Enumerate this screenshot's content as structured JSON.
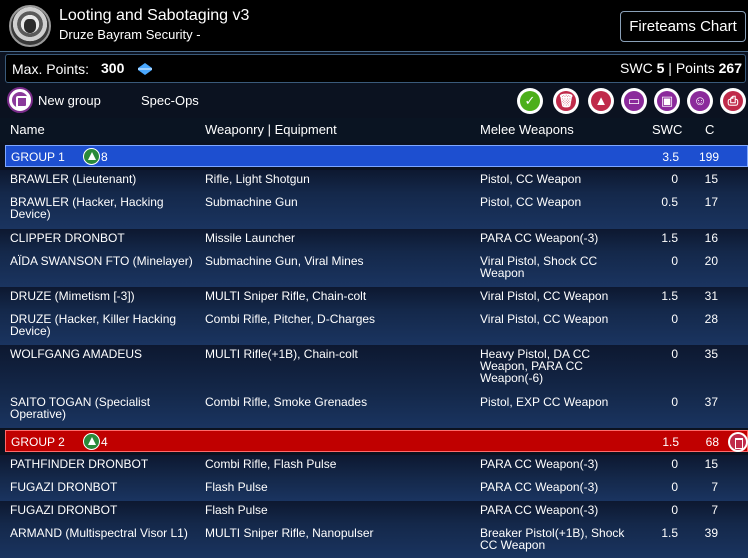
{
  "header": {
    "title": "Looting and Sabotaging v3",
    "subtitle": "Druze Bayram Security -",
    "fireteams_label": "Fireteams Chart"
  },
  "points_bar": {
    "max_points_label": "Max. Points:",
    "max_points_value": "300",
    "swc_label": "SWC",
    "swc_value": "5",
    "separator": "|",
    "points_label": "Points",
    "points_value": "267"
  },
  "toolbar": {
    "new_group_label": "New group",
    "spec_ops_label": "Spec-Ops",
    "buttons": [
      {
        "icon": "check-icon",
        "glyph": "✓",
        "color": "#4caf1a"
      },
      {
        "icon": "trash-icon",
        "glyph": "🗑",
        "color": "#c02a4a"
      },
      {
        "icon": "triangle-icon",
        "glyph": "▲",
        "color": "#c02a4a"
      },
      {
        "icon": "chat-icon",
        "glyph": "▭",
        "color": "#8b2a9b"
      },
      {
        "icon": "save-icon",
        "glyph": "▣",
        "color": "#8b2a9b"
      },
      {
        "icon": "smiley-icon",
        "glyph": "☺",
        "color": "#8b2a9b"
      },
      {
        "icon": "print-icon",
        "glyph": "⎙",
        "color": "#c02a4a"
      }
    ]
  },
  "columns": {
    "name": "Name",
    "weaponry": "Weaponry | Equipment",
    "melee": "Melee Weapons",
    "swc": "SWC",
    "cost": "C"
  },
  "groups": [
    {
      "label": "GROUP 1",
      "count": "8",
      "swc": "3.5",
      "cost": "199",
      "color": "#1d4fd0",
      "rows": [
        {
          "name": "BRAWLER (Lieutenant)",
          "weapons": "Rifle, Light Shotgun",
          "melee": "Pistol, CC Weapon",
          "swc": "0",
          "cost": "15"
        },
        {
          "name": "BRAWLER (Hacker, Hacking Device)",
          "weapons": "Submachine Gun",
          "melee": "Pistol, CC Weapon",
          "swc": "0.5",
          "cost": "17"
        },
        {
          "name": "CLIPPER DRONBOT",
          "weapons": "Missile Launcher",
          "melee": "PARA CC Weapon(-3)",
          "swc": "1.5",
          "cost": "16"
        },
        {
          "name": "AÏDA SWANSON FTO (Minelayer)",
          "weapons": "Submachine Gun, Viral Mines",
          "melee": "Viral Pistol, Shock CC Weapon",
          "swc": "0",
          "cost": "20"
        },
        {
          "name": "DRUZE (Mimetism [-3])",
          "weapons": "MULTI Sniper Rifle, Chain-colt",
          "melee": "Viral Pistol, CC Weapon",
          "swc": "1.5",
          "cost": "31"
        },
        {
          "name": "DRUZE (Hacker, Killer Hacking Device)",
          "weapons": "Combi Rifle, Pitcher, D-Charges",
          "melee": "Viral Pistol, CC Weapon",
          "swc": "0",
          "cost": "28"
        },
        {
          "name": "WOLFGANG AMADEUS",
          "weapons": "MULTI Rifle(+1B), Chain-colt",
          "melee": "Heavy Pistol, DA CC Weapon, PARA CC Weapon(-6)",
          "swc": "0",
          "cost": "35"
        },
        {
          "name": "SAITO TOGAN (Specialist Operative)",
          "weapons": "Combi Rifle, Smoke Grenades",
          "melee": "Pistol, EXP CC Weapon",
          "swc": "0",
          "cost": "37"
        }
      ]
    },
    {
      "label": "GROUP 2",
      "count": "4",
      "swc": "1.5",
      "cost": "68",
      "color": "#c00000",
      "rows": [
        {
          "name": "PATHFINDER DRONBOT",
          "weapons": "Combi Rifle, Flash Pulse",
          "melee": "PARA CC Weapon(-3)",
          "swc": "0",
          "cost": "15"
        },
        {
          "name": "FUGAZI DRONBOT",
          "weapons": "Flash Pulse",
          "melee": "PARA CC Weapon(-3)",
          "swc": "0",
          "cost": "7"
        },
        {
          "name": "FUGAZI DRONBOT",
          "weapons": "Flash Pulse",
          "melee": "PARA CC Weapon(-3)",
          "swc": "0",
          "cost": "7"
        },
        {
          "name": "ARMAND (Multispectral Visor L1)",
          "weapons": "MULTI Sniper Rifle, Nanopulser",
          "melee": "Breaker Pistol(+1B), Shock CC Weapon",
          "swc": "1.5",
          "cost": "39"
        }
      ]
    }
  ]
}
